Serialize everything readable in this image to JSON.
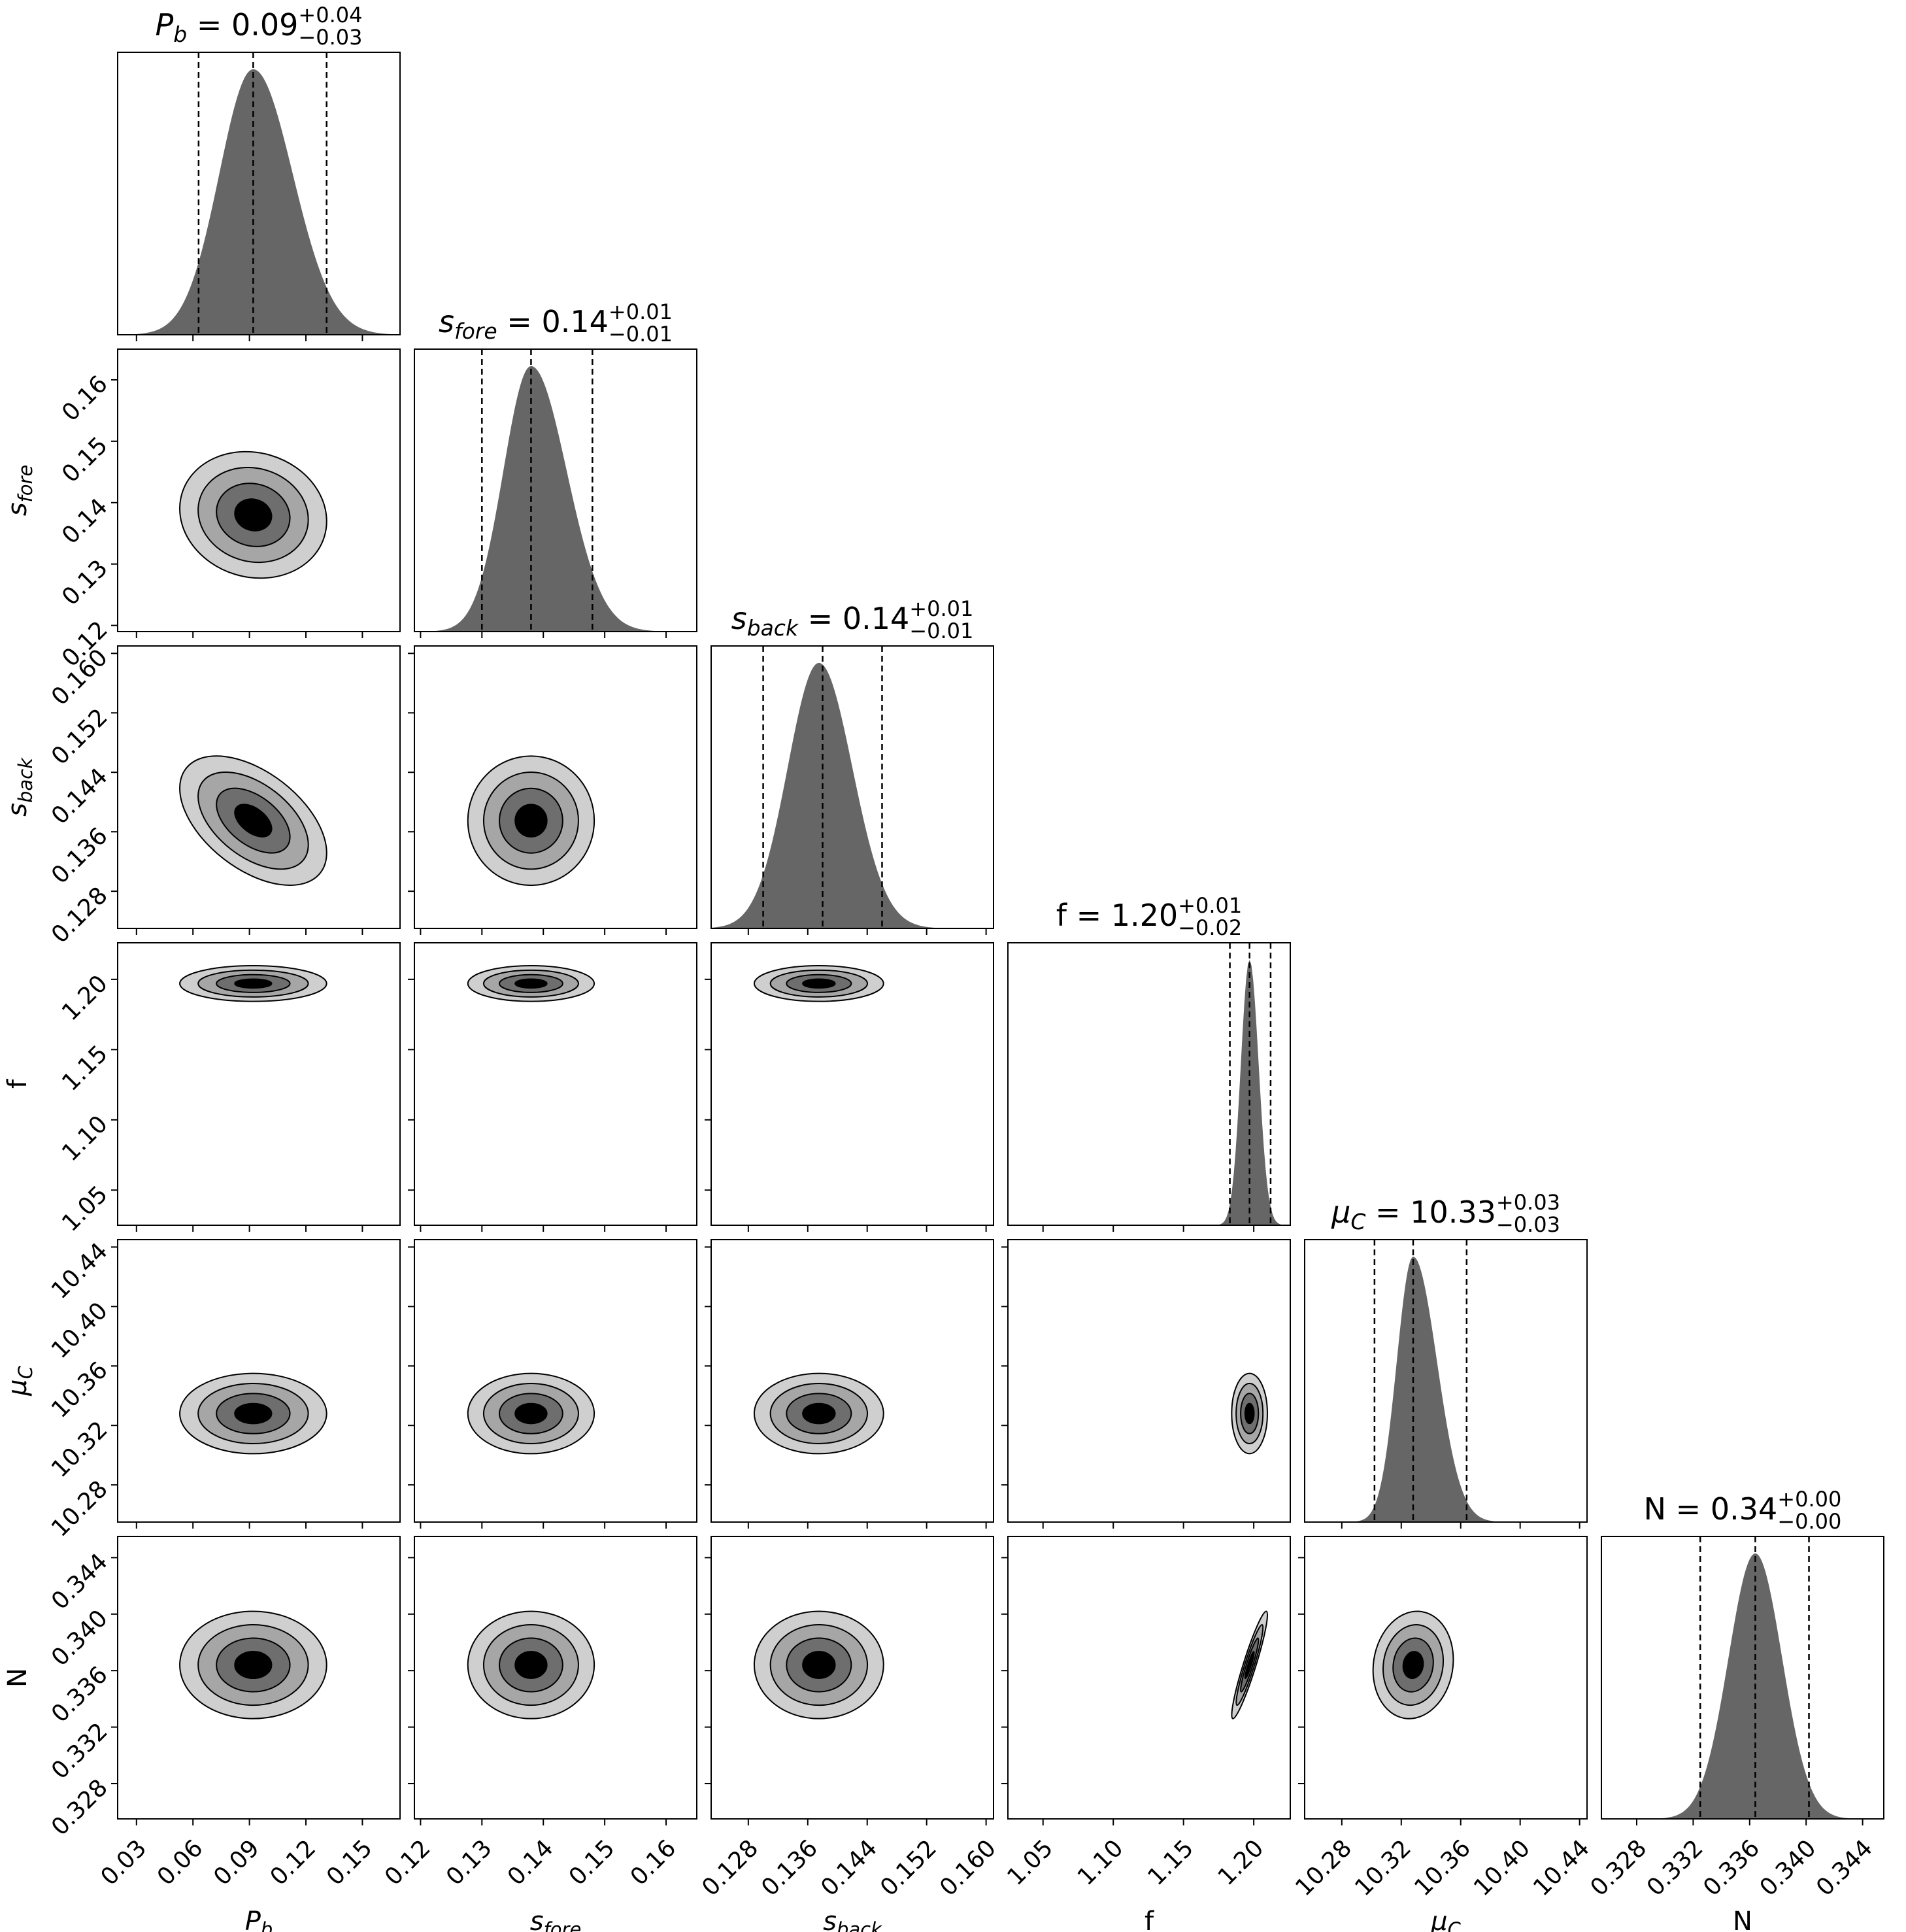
{
  "chart_data": {
    "type": "corner",
    "parameters": [
      {
        "key": "Pb",
        "label": "P",
        "sub": "b",
        "italic": true,
        "range": [
          0.02,
          0.17
        ],
        "ticks": [
          "0.03",
          "0.06",
          "0.09",
          "0.12",
          "0.15"
        ],
        "tick_values": [
          0.03,
          0.06,
          0.09,
          0.12,
          0.15
        ],
        "title_value": "0.09",
        "err_plus": "+0.04",
        "err_minus": "−0.03",
        "quantiles": [
          0.063,
          0.092,
          0.131
        ],
        "median": 0.092,
        "sigma_left": 0.018,
        "sigma_right": 0.021
      },
      {
        "key": "s_fore",
        "label": "s",
        "sub": "fore",
        "italic": true,
        "range": [
          0.119,
          0.165
        ],
        "ticks": [
          "0.12",
          "0.13",
          "0.14",
          "0.15",
          "0.16"
        ],
        "tick_values": [
          0.12,
          0.13,
          0.14,
          0.15,
          0.16
        ],
        "title_value": "0.14",
        "err_plus": "+0.01",
        "err_minus": "−0.01",
        "quantiles": [
          0.13,
          0.138,
          0.148
        ],
        "median": 0.138,
        "sigma_left": 0.0045,
        "sigma_right": 0.0058
      },
      {
        "key": "s_back",
        "label": "s",
        "sub": "back",
        "italic": true,
        "range": [
          0.123,
          0.161
        ],
        "ticks": [
          "0.128",
          "0.136",
          "0.144",
          "0.152",
          "0.160"
        ],
        "tick_values": [
          0.128,
          0.136,
          0.144,
          0.152,
          0.16
        ],
        "title_value": "0.14",
        "err_plus": "+0.01",
        "err_minus": "−0.01",
        "quantiles": [
          0.13,
          0.138,
          0.146
        ],
        "median": 0.1375,
        "sigma_left": 0.0042,
        "sigma_right": 0.0045
      },
      {
        "key": "f",
        "label": "f",
        "sub": "",
        "italic": false,
        "range": [
          1.025,
          1.226
        ],
        "ticks": [
          "1.05",
          "1.10",
          "1.15",
          "1.20"
        ],
        "tick_values": [
          1.05,
          1.1,
          1.15,
          1.2
        ],
        "title_value": "1.20",
        "err_plus": "+0.01",
        "err_minus": "−0.02",
        "quantiles": [
          1.183,
          1.197,
          1.212
        ],
        "median": 1.197,
        "sigma_left": 0.0062,
        "sigma_right": 0.0065
      },
      {
        "key": "mu_C",
        "label": "μ",
        "sub": "C",
        "italic": true,
        "range": [
          10.255,
          10.445
        ],
        "ticks": [
          "10.28",
          "10.32",
          "10.36",
          "10.40",
          "10.44"
        ],
        "tick_values": [
          10.28,
          10.32,
          10.36,
          10.4,
          10.44
        ],
        "title_value": "10.33",
        "err_plus": "+0.03",
        "err_minus": "−0.03",
        "quantiles": [
          10.302,
          10.328,
          10.364
        ],
        "median": 10.328,
        "sigma_left": 0.011,
        "sigma_right": 0.016
      },
      {
        "key": "N",
        "label": "N",
        "sub": "",
        "italic": false,
        "range": [
          0.3255,
          0.3455
        ],
        "ticks": [
          "0.328",
          "0.332",
          "0.336",
          "0.340",
          "0.344"
        ],
        "tick_values": [
          0.328,
          0.332,
          0.336,
          0.34,
          0.344
        ],
        "title_value": "0.34",
        "err_plus": "+0.00",
        "err_minus": "−0.00",
        "quantiles": [
          0.3325,
          0.3364,
          0.3402
        ],
        "median": 0.3364,
        "sigma_left": 0.0019,
        "sigma_right": 0.0019
      }
    ],
    "correlations": {
      "0,1": -0.1,
      "0,2": -0.5,
      "0,3": 0.0,
      "0,4": 0.0,
      "0,5": 0.0,
      "1,2": 0.0,
      "1,3": 0.0,
      "1,4": 0.0,
      "1,5": 0.0,
      "2,3": 0.0,
      "2,4": 0.0,
      "2,5": 0.0,
      "3,4": 0.0,
      "3,5": 0.93,
      "4,5": 0.1
    },
    "contour_levels": [
      0.5,
      1.0,
      1.5,
      2.0
    ],
    "contour_fills": [
      "#cfcfcf",
      "#a6a6a6",
      "#6e6e6e",
      "#000000"
    ],
    "histogram_fill": "#666666",
    "grid": false
  }
}
